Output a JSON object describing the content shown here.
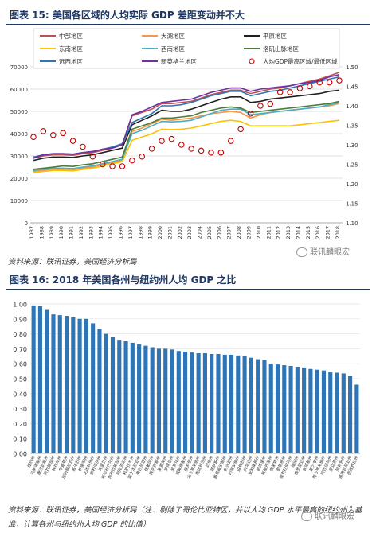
{
  "fig15": {
    "title": "图表 15:  美国各区域的人均实际 GDP 差距变动并不大",
    "source": "资料来源：联讯证券，美国经济分析局",
    "watermark": "联讯麟眼宏"
  },
  "fig16": {
    "title": "图表 16: 2018 年美国各州与纽约州人均 GDP 之比",
    "source_line1": "资料来源：联讯证券，美国经济分析局（注：剔除了哥伦比亚特区，并以人均 GDP 水平最高的纽约州为基",
    "source_line2": "准，计算各州与纽约州人均 GDP 的比值）",
    "watermark": "联讯麟眼宏"
  },
  "chart_data": [
    {
      "type": "line",
      "x": [
        1987,
        1988,
        1989,
        1990,
        1991,
        1992,
        1993,
        1994,
        1995,
        1996,
        1997,
        1998,
        1999,
        2000,
        2001,
        2002,
        2003,
        2004,
        2005,
        2006,
        2007,
        2008,
        2009,
        2010,
        2011,
        2012,
        2013,
        2014,
        2015,
        2016,
        2017,
        2018
      ],
      "xticks": [
        "1987",
        "1989",
        "1991",
        "1993",
        "1995",
        "1997",
        "1999",
        "2001",
        "2003",
        "2005",
        "2007",
        "2009",
        "2011",
        "2013",
        "2015",
        "2017",
        "1988",
        "1990",
        "1992",
        "1994",
        "1996",
        "1998",
        "2000",
        "2002",
        "2004",
        "2006",
        "2008",
        "2010",
        "2012",
        "2014",
        "2016",
        "2018"
      ],
      "ylim": [
        0,
        70000
      ],
      "yticks": [
        "0",
        "10000",
        "20000",
        "30000",
        "40000",
        "50000",
        "60000",
        "70000"
      ],
      "y2lim": [
        1.1,
        1.5
      ],
      "y2ticks": [
        "1.10",
        "1.15",
        "1.20",
        "1.25",
        "1.30",
        "1.35",
        "1.40",
        "1.45",
        "1.50"
      ],
      "legend_position": "top",
      "series": [
        {
          "name": "中部地区",
          "color": "#c0504d",
          "axis": "left",
          "values": [
            29000,
            30000,
            30500,
            30500,
            30300,
            31000,
            31500,
            32500,
            33500,
            35000,
            48000,
            49500,
            51000,
            53500,
            53500,
            54000,
            54500,
            56000,
            57500,
            58500,
            59500,
            59500,
            58000,
            59000,
            60000,
            60500,
            61500,
            62500,
            63500,
            64500,
            66000,
            67500
          ]
        },
        {
          "name": "大湖地区",
          "color": "#f79646",
          "axis": "left",
          "values": [
            23000,
            23500,
            24000,
            24000,
            23800,
            24500,
            25000,
            26000,
            27000,
            28000,
            41000,
            42500,
            44500,
            46500,
            46000,
            46500,
            47000,
            48000,
            49000,
            49500,
            50000,
            49500,
            47000,
            48500,
            49500,
            50000,
            50500,
            51000,
            51500,
            52000,
            52500,
            53500
          ]
        },
        {
          "name": "平原地区",
          "color": "#1f1f1f",
          "axis": "left",
          "values": [
            28000,
            29000,
            29500,
            29500,
            29300,
            30000,
            30500,
            31500,
            32500,
            33500,
            44000,
            46000,
            48000,
            50500,
            50000,
            50000,
            51000,
            52500,
            54000,
            55500,
            56500,
            56500,
            54000,
            54500,
            55500,
            56000,
            56500,
            57000,
            57500,
            58000,
            59000,
            59500
          ]
        },
        {
          "name": "东南地区",
          "color": "#ffc000",
          "axis": "left",
          "values": [
            22500,
            23000,
            23500,
            23500,
            23300,
            24000,
            24500,
            25500,
            26500,
            27500,
            37000,
            38500,
            40000,
            42000,
            41800,
            42000,
            42500,
            43500,
            44500,
            45500,
            46000,
            45500,
            43500,
            43500,
            43500,
            43500,
            43500,
            44000,
            44500,
            45000,
            45500,
            46000
          ]
        },
        {
          "name": "西南地区",
          "color": "#4bacc6",
          "axis": "left",
          "values": [
            23500,
            24000,
            24500,
            24500,
            24300,
            25000,
            25500,
            26500,
            27500,
            28500,
            40000,
            41500,
            43500,
            45500,
            45300,
            45500,
            46000,
            47500,
            49000,
            50500,
            51000,
            51000,
            48500,
            49000,
            49500,
            50000,
            50500,
            51000,
            51500,
            52000,
            53000,
            54000
          ]
        },
        {
          "name": "洛矶山脉地区",
          "color": "#4e7a3a",
          "axis": "left",
          "values": [
            24000,
            24500,
            25000,
            25500,
            25300,
            26000,
            26500,
            27500,
            28500,
            29500,
            42000,
            43500,
            45000,
            47000,
            47000,
            47500,
            48000,
            49500,
            50500,
            51500,
            52000,
            51500,
            49500,
            50000,
            50500,
            51000,
            51500,
            52000,
            52500,
            53000,
            53500,
            54500
          ]
        },
        {
          "name": "远西地区",
          "color": "#2e75b6",
          "axis": "left",
          "values": [
            29500,
            30500,
            31000,
            31000,
            30800,
            31500,
            32000,
            33000,
            34000,
            35500,
            45000,
            47000,
            49000,
            52500,
            52500,
            53000,
            54000,
            55500,
            57000,
            58000,
            59000,
            59000,
            57000,
            58000,
            59000,
            59500,
            60500,
            61500,
            62500,
            63500,
            64500,
            65500
          ]
        },
        {
          "name": "新英格兰地区",
          "color": "#7030a0",
          "axis": "left",
          "values": [
            29000,
            30500,
            31000,
            31000,
            30800,
            31500,
            32000,
            33000,
            33500,
            35000,
            48500,
            50000,
            52000,
            54000,
            54500,
            55000,
            55500,
            57000,
            58500,
            59500,
            60500,
            60500,
            59000,
            60000,
            60500,
            61000,
            61500,
            62500,
            63000,
            64000,
            65500,
            66500
          ]
        },
        {
          "name": "人均GDP最高区域/最低区域",
          "color": "#c00000",
          "axis": "right",
          "marker": "circle",
          "values": [
            1.32,
            1.335,
            1.325,
            1.33,
            1.31,
            1.295,
            1.27,
            1.25,
            1.245,
            1.245,
            1.26,
            1.27,
            1.29,
            1.31,
            1.315,
            1.3,
            1.29,
            1.285,
            1.28,
            1.28,
            1.31,
            1.34,
            1.38,
            1.4,
            1.405,
            1.435,
            1.435,
            1.445,
            1.45,
            1.46,
            1.46,
            1.465
          ]
        }
      ]
    },
    {
      "type": "bar",
      "ylim": [
        0,
        1.0
      ],
      "yticks": [
        "0.00",
        "0.10",
        "0.20",
        "0.30",
        "0.40",
        "0.50",
        "0.60",
        "0.70",
        "0.80",
        "0.90",
        "1.00"
      ],
      "color": "#2e75b6",
      "categories": [
        "纽约州",
        "马萨诸塞州",
        "康涅狄格州",
        "阿拉斯加州",
        "特拉华州",
        "华盛顿州",
        "加利福尼亚州",
        "新泽西州",
        "怀俄明州",
        "北达科他州",
        "伊利诺伊州",
        "马里兰州",
        "新罕布什尔州",
        "内布拉斯加州",
        "明尼苏达州",
        "科罗拉多州",
        "宾夕法尼亚州",
        "弗吉尼亚州",
        "俄勒冈州",
        "得克萨斯州",
        "夏威夷州",
        "罗得岛州",
        "爱荷华州",
        "威斯康星州",
        "俄亥俄州",
        "北卡罗来纳州",
        "南达科他州",
        "犹他州",
        "堪萨斯州",
        "路易斯安那州",
        "佐治亚州",
        "印第安纳州",
        "田纳西州",
        "内华达州",
        "亚利桑那州",
        "密苏里州",
        "新墨西哥州",
        "佛蒙特州",
        "密歇根州",
        "俄克拉何马州",
        "缅因州",
        "佛罗里达州",
        "肯塔基州",
        "蒙大拿州",
        "南卡罗来纳州",
        "阿拉巴马州",
        "爱达荷州",
        "阿肯色州",
        "西弗吉尼亚州",
        "密西西比州"
      ],
      "values": [
        0.99,
        0.985,
        0.96,
        0.93,
        0.925,
        0.92,
        0.91,
        0.9,
        0.9,
        0.87,
        0.83,
        0.8,
        0.78,
        0.76,
        0.75,
        0.74,
        0.73,
        0.72,
        0.71,
        0.7,
        0.7,
        0.695,
        0.685,
        0.68,
        0.675,
        0.67,
        0.67,
        0.665,
        0.665,
        0.66,
        0.66,
        0.655,
        0.65,
        0.64,
        0.63,
        0.625,
        0.6,
        0.595,
        0.59,
        0.585,
        0.58,
        0.575,
        0.565,
        0.56,
        0.555,
        0.545,
        0.54,
        0.535,
        0.52,
        0.46
      ]
    }
  ]
}
